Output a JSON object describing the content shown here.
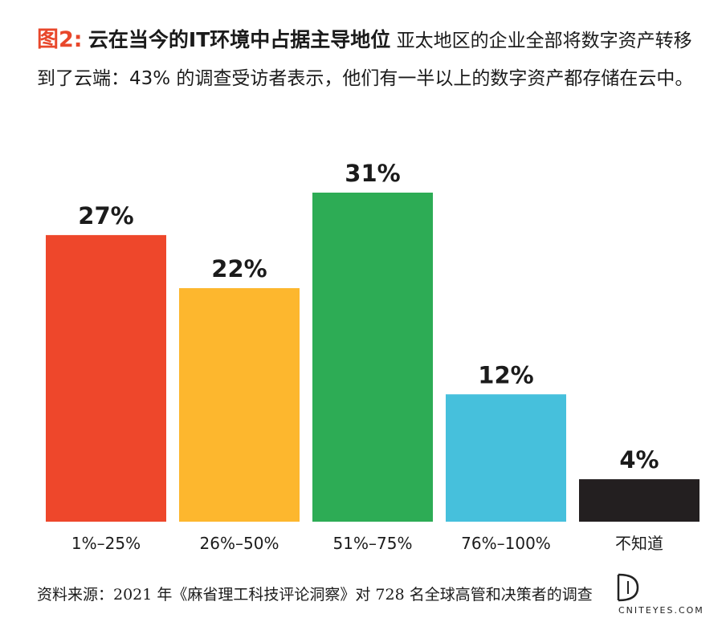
{
  "figure": {
    "label": "图2:",
    "headline": "云在当今的IT环境中占据主导地位",
    "description": "亚太地区的企业全部将数字资产转移到了云端：43% 的调查受访者表示，他们有一半以上的数字资产都存储在云中。"
  },
  "chart_data": {
    "type": "bar",
    "categories": [
      "1%–25%",
      "26%–50%",
      "51%–75%",
      "76%–100%",
      "不知道"
    ],
    "values": [
      27,
      22,
      31,
      12,
      4
    ],
    "value_labels": [
      "27%",
      "22%",
      "31%",
      "12%",
      "4%"
    ],
    "colors": [
      "#ee472b",
      "#fdb72e",
      "#2dac55",
      "#46c0dc",
      "#231f20"
    ],
    "ylim": [
      0,
      31
    ],
    "grid": false,
    "title": "",
    "xlabel": "",
    "ylabel": ""
  },
  "source": "资料来源：2021 年《麻省理工科技评论洞察》对 728 名全球高管和决策者的调查",
  "watermark": {
    "text": "CNITEYES.COM"
  }
}
